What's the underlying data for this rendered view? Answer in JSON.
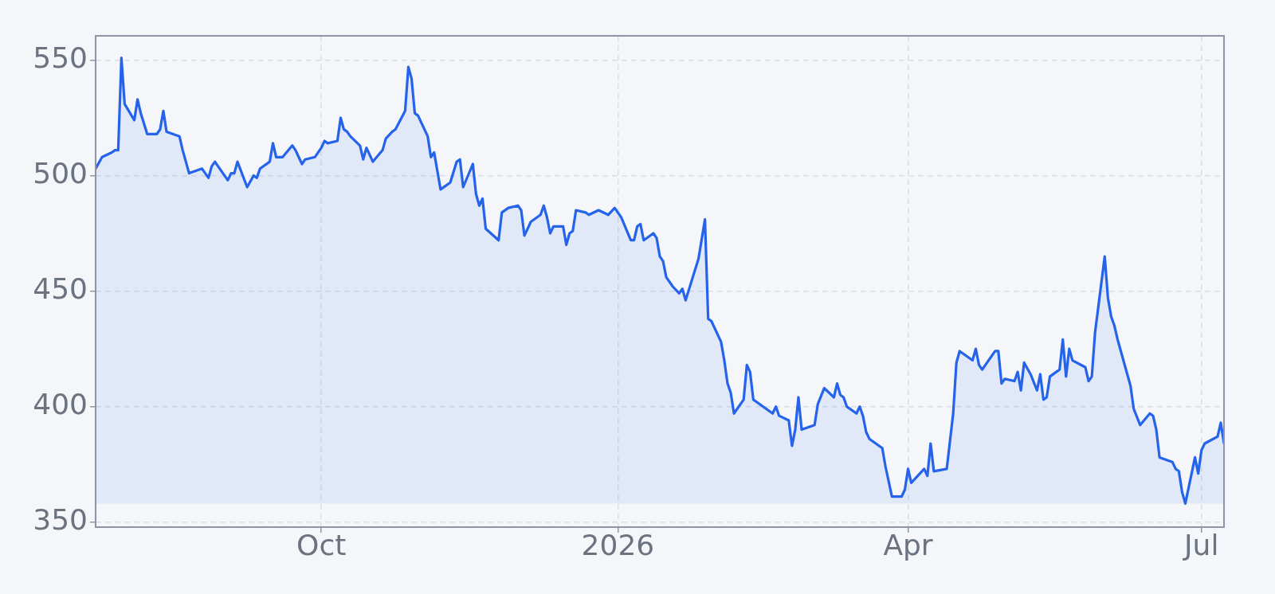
{
  "chart_data": {
    "type": "area",
    "x": [
      "2025-07-23",
      "2025-07-25",
      "2025-07-28",
      "2025-07-29",
      "2025-07-30",
      "2025-07-31",
      "2025-08-01",
      "2025-08-04",
      "2025-08-05",
      "2025-08-06",
      "2025-08-08",
      "2025-08-11",
      "2025-08-12",
      "2025-08-13",
      "2025-08-14",
      "2025-08-18",
      "2025-08-19",
      "2025-08-21",
      "2025-08-25",
      "2025-08-27",
      "2025-08-28",
      "2025-08-29",
      "2025-09-02",
      "2025-09-03",
      "2025-09-04",
      "2025-09-05",
      "2025-09-08",
      "2025-09-10",
      "2025-09-11",
      "2025-09-12",
      "2025-09-15",
      "2025-09-16",
      "2025-09-17",
      "2025-09-18",
      "2025-09-19",
      "2025-09-22",
      "2025-09-23",
      "2025-09-25",
      "2025-09-26",
      "2025-09-29",
      "2025-10-01",
      "2025-10-02",
      "2025-10-03",
      "2025-10-06",
      "2025-10-07",
      "2025-10-08",
      "2025-10-09",
      "2025-10-10",
      "2025-10-13",
      "2025-10-14",
      "2025-10-15",
      "2025-10-17",
      "2025-10-20",
      "2025-10-21",
      "2025-10-23",
      "2025-10-24",
      "2025-10-27",
      "2025-10-28",
      "2025-10-29",
      "2025-10-30",
      "2025-10-31",
      "2025-11-03",
      "2025-11-04",
      "2025-11-05",
      "2025-11-07",
      "2025-11-10",
      "2025-11-12",
      "2025-11-13",
      "2025-11-14",
      "2025-11-17",
      "2025-11-18",
      "2025-11-19",
      "2025-11-20",
      "2025-11-21",
      "2025-11-25",
      "2025-11-26",
      "2025-11-28",
      "2025-12-01",
      "2025-12-02",
      "2025-12-03",
      "2025-12-05",
      "2025-12-08",
      "2025-12-09",
      "2025-12-10",
      "2025-12-11",
      "2025-12-12",
      "2025-12-15",
      "2025-12-16",
      "2025-12-17",
      "2025-12-18",
      "2025-12-19",
      "2025-12-22",
      "2025-12-23",
      "2025-12-26",
      "2025-12-29",
      "2025-12-31",
      "2026-01-02",
      "2026-01-05",
      "2026-01-06",
      "2026-01-07",
      "2026-01-08",
      "2026-01-09",
      "2026-01-12",
      "2026-01-13",
      "2026-01-14",
      "2026-01-15",
      "2026-01-16",
      "2026-01-18",
      "2026-01-20",
      "2026-01-21",
      "2026-01-22",
      "2026-01-26",
      "2026-01-28",
      "2026-01-29",
      "2026-01-30",
      "2026-02-02",
      "2026-02-03",
      "2026-02-04",
      "2026-02-05",
      "2026-02-06",
      "2026-02-09",
      "2026-02-10",
      "2026-02-11",
      "2026-02-12",
      "2026-02-13",
      "2026-02-18",
      "2026-02-19",
      "2026-02-20",
      "2026-02-23",
      "2026-02-24",
      "2026-02-25",
      "2026-02-26",
      "2026-02-27",
      "2026-03-03",
      "2026-03-04",
      "2026-03-06",
      "2026-03-09",
      "2026-03-10",
      "2026-03-11",
      "2026-03-12",
      "2026-03-13",
      "2026-03-16",
      "2026-03-17",
      "2026-03-18",
      "2026-03-19",
      "2026-03-20",
      "2026-03-24",
      "2026-03-25",
      "2026-03-27",
      "2026-03-30",
      "2026-03-31",
      "2026-04-01",
      "2026-04-02",
      "2026-04-06",
      "2026-04-07",
      "2026-04-08",
      "2026-04-09",
      "2026-04-13",
      "2026-04-15",
      "2026-04-16",
      "2026-04-17",
      "2026-04-21",
      "2026-04-22",
      "2026-04-23",
      "2026-04-24",
      "2026-04-28",
      "2026-04-29",
      "2026-04-30",
      "2026-05-01",
      "2026-05-04",
      "2026-05-05",
      "2026-05-06",
      "2026-05-07",
      "2026-05-09",
      "2026-05-11",
      "2026-05-12",
      "2026-05-13",
      "2026-05-14",
      "2026-05-15",
      "2026-05-18",
      "2026-05-19",
      "2026-05-20",
      "2026-05-21",
      "2026-05-22",
      "2026-05-26",
      "2026-05-27",
      "2026-05-28",
      "2026-05-29",
      "2026-06-01",
      "2026-06-02",
      "2026-06-03",
      "2026-06-04",
      "2026-06-05",
      "2026-06-09",
      "2026-06-10",
      "2026-06-12",
      "2026-06-15",
      "2026-06-16",
      "2026-06-17",
      "2026-06-18",
      "2026-06-22",
      "2026-06-23",
      "2026-06-24",
      "2026-06-25",
      "2026-06-26",
      "2026-06-29",
      "2026-06-30",
      "2026-07-01",
      "2026-07-02",
      "2026-07-06",
      "2026-07-07",
      "2026-07-08"
    ],
    "series": [
      {
        "color": "#2563eb",
        "values": [
          503,
          508,
          510,
          511,
          511,
          551,
          531,
          524,
          533,
          527,
          518,
          518,
          520,
          528,
          519,
          517,
          511,
          501,
          503,
          499,
          504,
          506,
          498,
          501,
          501,
          506,
          495,
          500,
          499,
          503,
          506,
          514,
          508,
          508,
          508,
          513,
          511,
          505,
          507,
          508,
          512,
          515,
          514,
          515,
          525,
          520,
          519,
          517,
          513,
          507,
          512,
          506,
          511,
          516,
          519,
          520,
          528,
          547,
          542,
          527,
          526,
          517,
          508,
          510,
          494,
          497,
          506,
          507,
          495,
          505,
          492,
          487,
          490,
          477,
          472,
          484,
          486,
          487,
          485,
          474,
          480,
          483,
          487,
          482,
          475,
          478,
          478,
          470,
          475,
          476,
          485,
          484,
          483,
          485,
          483,
          486,
          482,
          472,
          472,
          478,
          479,
          472,
          475,
          473,
          465,
          463,
          456,
          452,
          449,
          451,
          446,
          464,
          481,
          438,
          437,
          428,
          420,
          410,
          406,
          397,
          403,
          418,
          415,
          403,
          402,
          397,
          400,
          396,
          394,
          383,
          390,
          404,
          390,
          392,
          401,
          408,
          404,
          410,
          405,
          404,
          400,
          397,
          400,
          396,
          389,
          386,
          382,
          374,
          361,
          361,
          364,
          373,
          367,
          373,
          370,
          384,
          372,
          373,
          397,
          419,
          424,
          420,
          425,
          418,
          416,
          424,
          424,
          410,
          412,
          411,
          415,
          407,
          419,
          414,
          407,
          414,
          403,
          404,
          413,
          416,
          429,
          413,
          425,
          420,
          417,
          411,
          413,
          432,
          465,
          447,
          439,
          435,
          429,
          409,
          399,
          392,
          397,
          396,
          390,
          378,
          376,
          373,
          372,
          363,
          358,
          378,
          371,
          381,
          384,
          387,
          393,
          384
        ]
      }
    ],
    "xlim": [
      "2025-07-23",
      "2026-07-08"
    ],
    "xticks": [
      {
        "value": "2025-10-01",
        "label": "Oct"
      },
      {
        "value": "2026-01-01",
        "label": "2026"
      },
      {
        "value": "2026-04-01",
        "label": "Apr"
      },
      {
        "value": "2026-07-01",
        "label": "Jul"
      }
    ],
    "ylim": [
      347.8,
      560.5
    ],
    "yticks": [
      350,
      400,
      450,
      500,
      550
    ],
    "grid": true
  }
}
